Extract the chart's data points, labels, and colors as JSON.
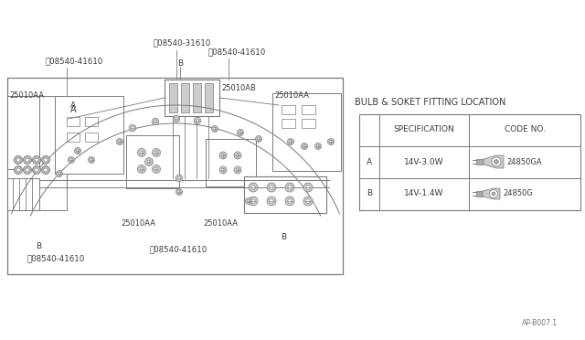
{
  "bg_color": "#ffffff",
  "line_color": "#7a7a7a",
  "text_color": "#3a3a3a",
  "table_title": "BULB & SOKET FITTING LOCATION",
  "col_headers": [
    "SPECIFICATION",
    "CODE NO."
  ],
  "row_a_label": "A",
  "row_b_label": "B",
  "row_a_spec": "14V-3.0W",
  "row_b_spec": "14V-1.4W",
  "row_a_code": "24850GA",
  "row_b_code": "24850G",
  "footer": "AP-B007.1",
  "labels": {
    "s31610": "Ⓜ08540-31610",
    "s41610_top_left": "Ⓜ08540-41610",
    "s41610_top_right": "Ⓜ08540-41610",
    "s41610_bot_left": "Ⓜ08540-41610",
    "s41610_bot_mid": "Ⓜ08540-41610",
    "p25010AB": "25010AB",
    "p25010AA_tl": "25010AA",
    "p25010AA_tr": "25010AA",
    "p25010AA_bl": "25010AA",
    "p25010AA_bm": "25010AA",
    "A": "A",
    "B_tl": "B",
    "B_bl": "B",
    "B_br": "B"
  }
}
